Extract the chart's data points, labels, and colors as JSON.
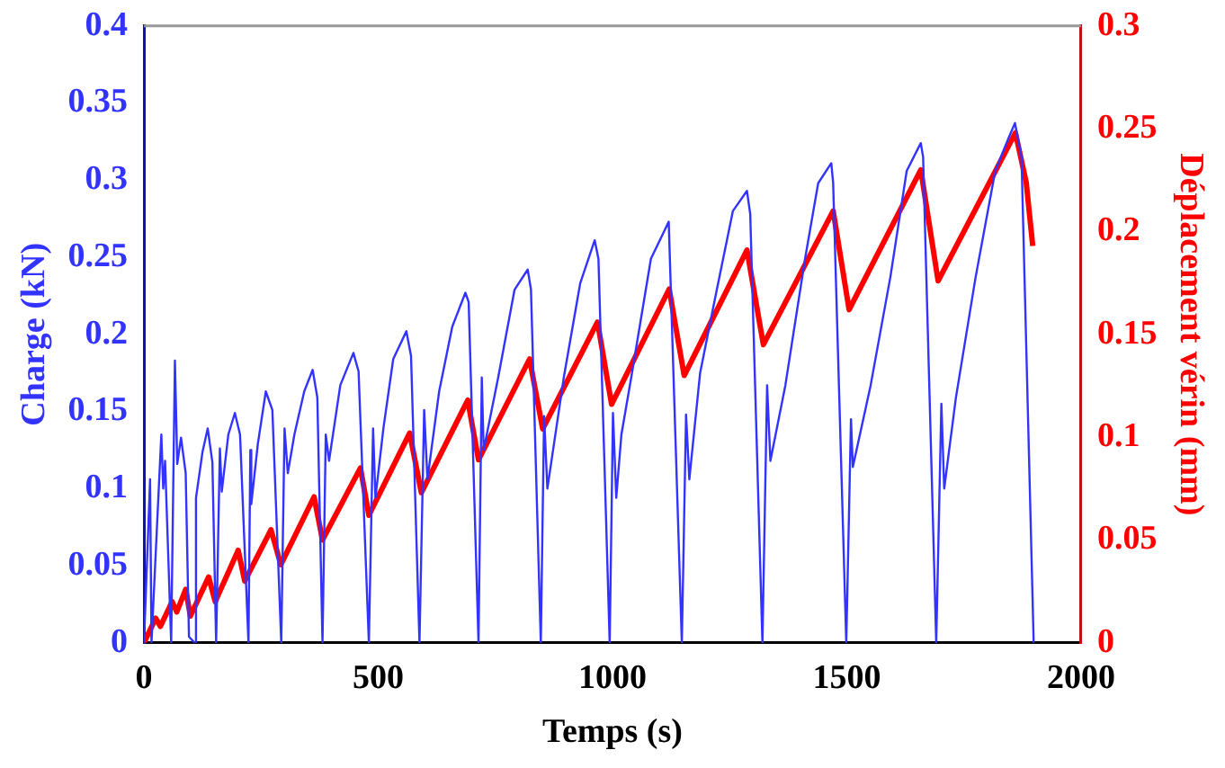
{
  "chart_data": {
    "type": "line",
    "xlabel": "Temps (s)",
    "ylabel": "Charge (kN)",
    "y2label": "Déplacement vérin (mm)",
    "xlim": [
      0,
      2000
    ],
    "xticks": [
      0,
      500,
      1000,
      1500,
      2000
    ],
    "ylim": [
      0,
      0.4
    ],
    "yticks": [
      0,
      0.05,
      0.1,
      0.15,
      0.2,
      0.25,
      0.3,
      0.35,
      0.4
    ],
    "y2lim": [
      0,
      0.3
    ],
    "y2ticks": [
      0,
      0.05,
      0.1,
      0.15,
      0.2,
      0.25,
      0.3
    ],
    "grid": false,
    "legend": false,
    "marker": "none",
    "line_style": "solid",
    "series": [
      {
        "color": "#3333ff",
        "axis": "y",
        "x": [
          0,
          13,
          16,
          37,
          41,
          45,
          58,
          66,
          71,
          79,
          89,
          96,
          108,
          111,
          125,
          136,
          146,
          154,
          162,
          166,
          180,
          194,
          205,
          223,
          227,
          229,
          243,
          260,
          274,
          293,
          300,
          307,
          321,
          342,
          360,
          370,
          381,
          388,
          395,
          419,
          447,
          458,
          480,
          489,
          494,
          511,
          532,
          560,
          570,
          588,
          598,
          605,
          630,
          658,
          686,
          693,
          714,
          721,
          725,
          756,
          791,
          819,
          826,
          847,
          854,
          861,
          896,
          931,
          962,
          970,
          994,
          1001,
          1008,
          1019,
          1040,
          1082,
          1120,
          1148,
          1157,
          1164,
          1187,
          1222,
          1257,
          1287,
          1294,
          1320,
          1330,
          1337,
          1369,
          1411,
          1439,
          1467,
          1471,
          1499,
          1509,
          1513,
          1551,
          1593,
          1628,
          1658,
          1663,
          1691,
          1702,
          1708,
          1733,
          1775,
          1817,
          1845,
          1859,
          1873,
          1899
        ],
        "values": [
          0,
          0.106,
          0,
          0.135,
          0.1,
          0.118,
          0,
          0.183,
          0.116,
          0.133,
          0.11,
          0.004,
          0,
          0.094,
          0.124,
          0.139,
          0.117,
          0,
          0.126,
          0.098,
          0.135,
          0.149,
          0.135,
          0,
          0.125,
          0.09,
          0.129,
          0.163,
          0.151,
          0,
          0.139,
          0.11,
          0.135,
          0.163,
          0.177,
          0.159,
          0,
          0.135,
          0.118,
          0.167,
          0.188,
          0.176,
          0,
          0.139,
          0.094,
          0.139,
          0.184,
          0.202,
          0.186,
          0,
          0.151,
          0.106,
          0.163,
          0.205,
          0.227,
          0.221,
          0,
          0.172,
          0.125,
          0.172,
          0.229,
          0.242,
          0.229,
          0,
          0.147,
          0.1,
          0.172,
          0.233,
          0.261,
          0.249,
          0,
          0.149,
          0.094,
          0.135,
          0.172,
          0.249,
          0.273,
          0,
          0.148,
          0.106,
          0.175,
          0.228,
          0.28,
          0.293,
          0.278,
          0,
          0.167,
          0.118,
          0.167,
          0.249,
          0.298,
          0.311,
          0.298,
          0,
          0.145,
          0.114,
          0.167,
          0.237,
          0.306,
          0.324,
          0.315,
          0,
          0.155,
          0.1,
          0.159,
          0.237,
          0.306,
          0.327,
          0.337,
          0.315,
          0
        ]
      },
      {
        "color": "#ff0000",
        "axis": "y2",
        "x": [
          0,
          25,
          35,
          60,
          70,
          89,
          99,
          138,
          152,
          201,
          215,
          271,
          292,
          363,
          381,
          462,
          480,
          567,
          592,
          691,
          714,
          823,
          851,
          968,
          998,
          1121,
          1153,
          1287,
          1322,
          1471,
          1505,
          1658,
          1695,
          1860,
          1883,
          1897
        ],
        "values": [
          0,
          0.012,
          0.008,
          0.02,
          0.015,
          0.026,
          0.013,
          0.032,
          0.02,
          0.045,
          0.03,
          0.055,
          0.038,
          0.071,
          0.05,
          0.085,
          0.062,
          0.102,
          0.073,
          0.118,
          0.089,
          0.138,
          0.104,
          0.156,
          0.116,
          0.172,
          0.13,
          0.191,
          0.145,
          0.21,
          0.162,
          0.23,
          0.176,
          0.248,
          0.224,
          0.193
        ]
      }
    ]
  }
}
